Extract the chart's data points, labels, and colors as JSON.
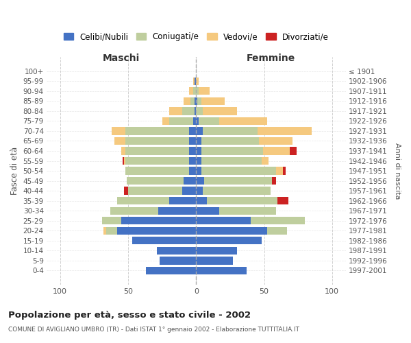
{
  "age_groups": [
    "100+",
    "95-99",
    "90-94",
    "85-89",
    "80-84",
    "75-79",
    "70-74",
    "65-69",
    "60-64",
    "55-59",
    "50-54",
    "45-49",
    "40-44",
    "35-39",
    "30-34",
    "25-29",
    "20-24",
    "15-19",
    "10-14",
    "5-9",
    "0-4"
  ],
  "birth_years": [
    "≤ 1901",
    "1902-1906",
    "1907-1911",
    "1912-1916",
    "1917-1921",
    "1922-1926",
    "1927-1931",
    "1932-1936",
    "1937-1941",
    "1942-1946",
    "1947-1951",
    "1952-1956",
    "1957-1961",
    "1962-1966",
    "1967-1971",
    "1972-1976",
    "1977-1981",
    "1982-1986",
    "1987-1991",
    "1992-1996",
    "1997-2001"
  ],
  "maschi_celibi": [
    0,
    1,
    0,
    1,
    1,
    2,
    5,
    5,
    5,
    5,
    5,
    9,
    10,
    20,
    28,
    55,
    58,
    47,
    29,
    27,
    37
  ],
  "maschi_coniugati": [
    0,
    0,
    2,
    3,
    9,
    18,
    47,
    47,
    47,
    47,
    47,
    42,
    40,
    38,
    35,
    14,
    8,
    0,
    0,
    0,
    0
  ],
  "maschi_vedovi": [
    0,
    1,
    3,
    5,
    10,
    5,
    10,
    8,
    3,
    1,
    0,
    0,
    0,
    0,
    0,
    0,
    2,
    0,
    0,
    0,
    0
  ],
  "maschi_divorziati": [
    0,
    0,
    0,
    0,
    0,
    0,
    0,
    0,
    0,
    1,
    0,
    0,
    3,
    0,
    0,
    0,
    0,
    0,
    0,
    0,
    0
  ],
  "femmine_nubili": [
    0,
    0,
    0,
    1,
    0,
    2,
    5,
    4,
    4,
    4,
    4,
    6,
    5,
    8,
    17,
    40,
    52,
    48,
    30,
    27,
    37
  ],
  "femmine_coniugate": [
    0,
    0,
    2,
    3,
    5,
    15,
    40,
    42,
    45,
    44,
    55,
    50,
    50,
    52,
    42,
    40,
    15,
    0,
    0,
    0,
    0
  ],
  "femmine_vedove": [
    0,
    2,
    8,
    17,
    25,
    35,
    40,
    25,
    20,
    5,
    5,
    0,
    0,
    0,
    0,
    0,
    0,
    0,
    0,
    0,
    0
  ],
  "femmine_divorziate": [
    0,
    0,
    0,
    0,
    0,
    0,
    0,
    0,
    5,
    0,
    2,
    3,
    0,
    8,
    0,
    0,
    0,
    0,
    0,
    0,
    0
  ],
  "colors": {
    "celibi": "#4472C4",
    "coniugati": "#BFCE9E",
    "vedovi": "#F5C97F",
    "divorziati": "#CC2222"
  },
  "xlim": 110,
  "title": "Popolazione per età, sesso e stato civile - 2002",
  "subtitle": "COMUNE DI AVIGLIANO UMBRO (TR) - Dati ISTAT 1° gennaio 2002 - Elaborazione TUTTITALIA.IT",
  "ylabel_left": "Fasce di età",
  "ylabel_right": "Anni di nascita",
  "xlabel_left": "Maschi",
  "xlabel_right": "Femmine",
  "legend_labels": [
    "Celibi/Nubili",
    "Coniugati/e",
    "Vedovi/e",
    "Divorziati/e"
  ],
  "background_color": "#ffffff",
  "grid_color": "#cccccc"
}
